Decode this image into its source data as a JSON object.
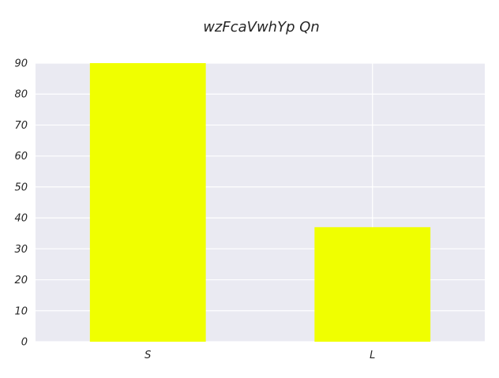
{
  "chart_data": {
    "type": "bar",
    "title": "wzFcaVwhYp Qn",
    "categories": [
      "S",
      "L"
    ],
    "values": [
      90,
      37
    ],
    "ylim": [
      0,
      90
    ],
    "yticks": [
      0,
      10,
      20,
      30,
      40,
      50,
      60,
      70,
      80,
      90
    ],
    "grid": true,
    "bar_color": "#f0ff00",
    "plot_bg": "#eaeaf2",
    "grid_color": "#ffffff"
  }
}
